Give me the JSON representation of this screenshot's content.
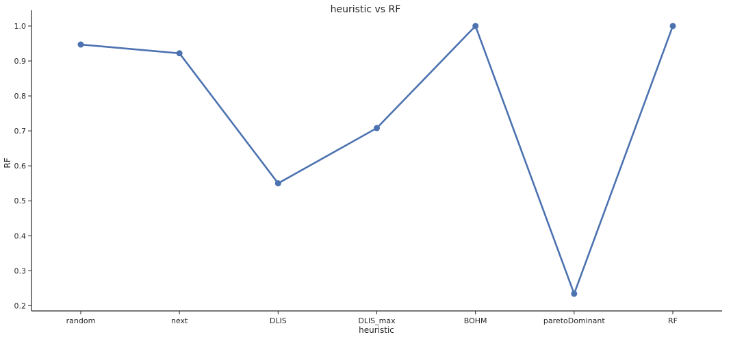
{
  "chart_data": {
    "type": "line",
    "title": "heuristic vs RF",
    "xlabel": "heuristic",
    "ylabel": "RF",
    "categories": [
      "random",
      "next",
      "DLIS",
      "DLIS_max",
      "BOHM",
      "paretoDominant",
      "RF"
    ],
    "values": [
      0.947,
      0.922,
      0.55,
      0.708,
      1.0,
      0.234,
      1.0
    ],
    "ylim": [
      0.185,
      1.045
    ],
    "yticks": [
      "0.2",
      "0.3",
      "0.4",
      "0.5",
      "0.6",
      "0.7",
      "0.8",
      "0.9",
      "1.0"
    ],
    "grid": false,
    "line_color": "#4c72b0"
  }
}
